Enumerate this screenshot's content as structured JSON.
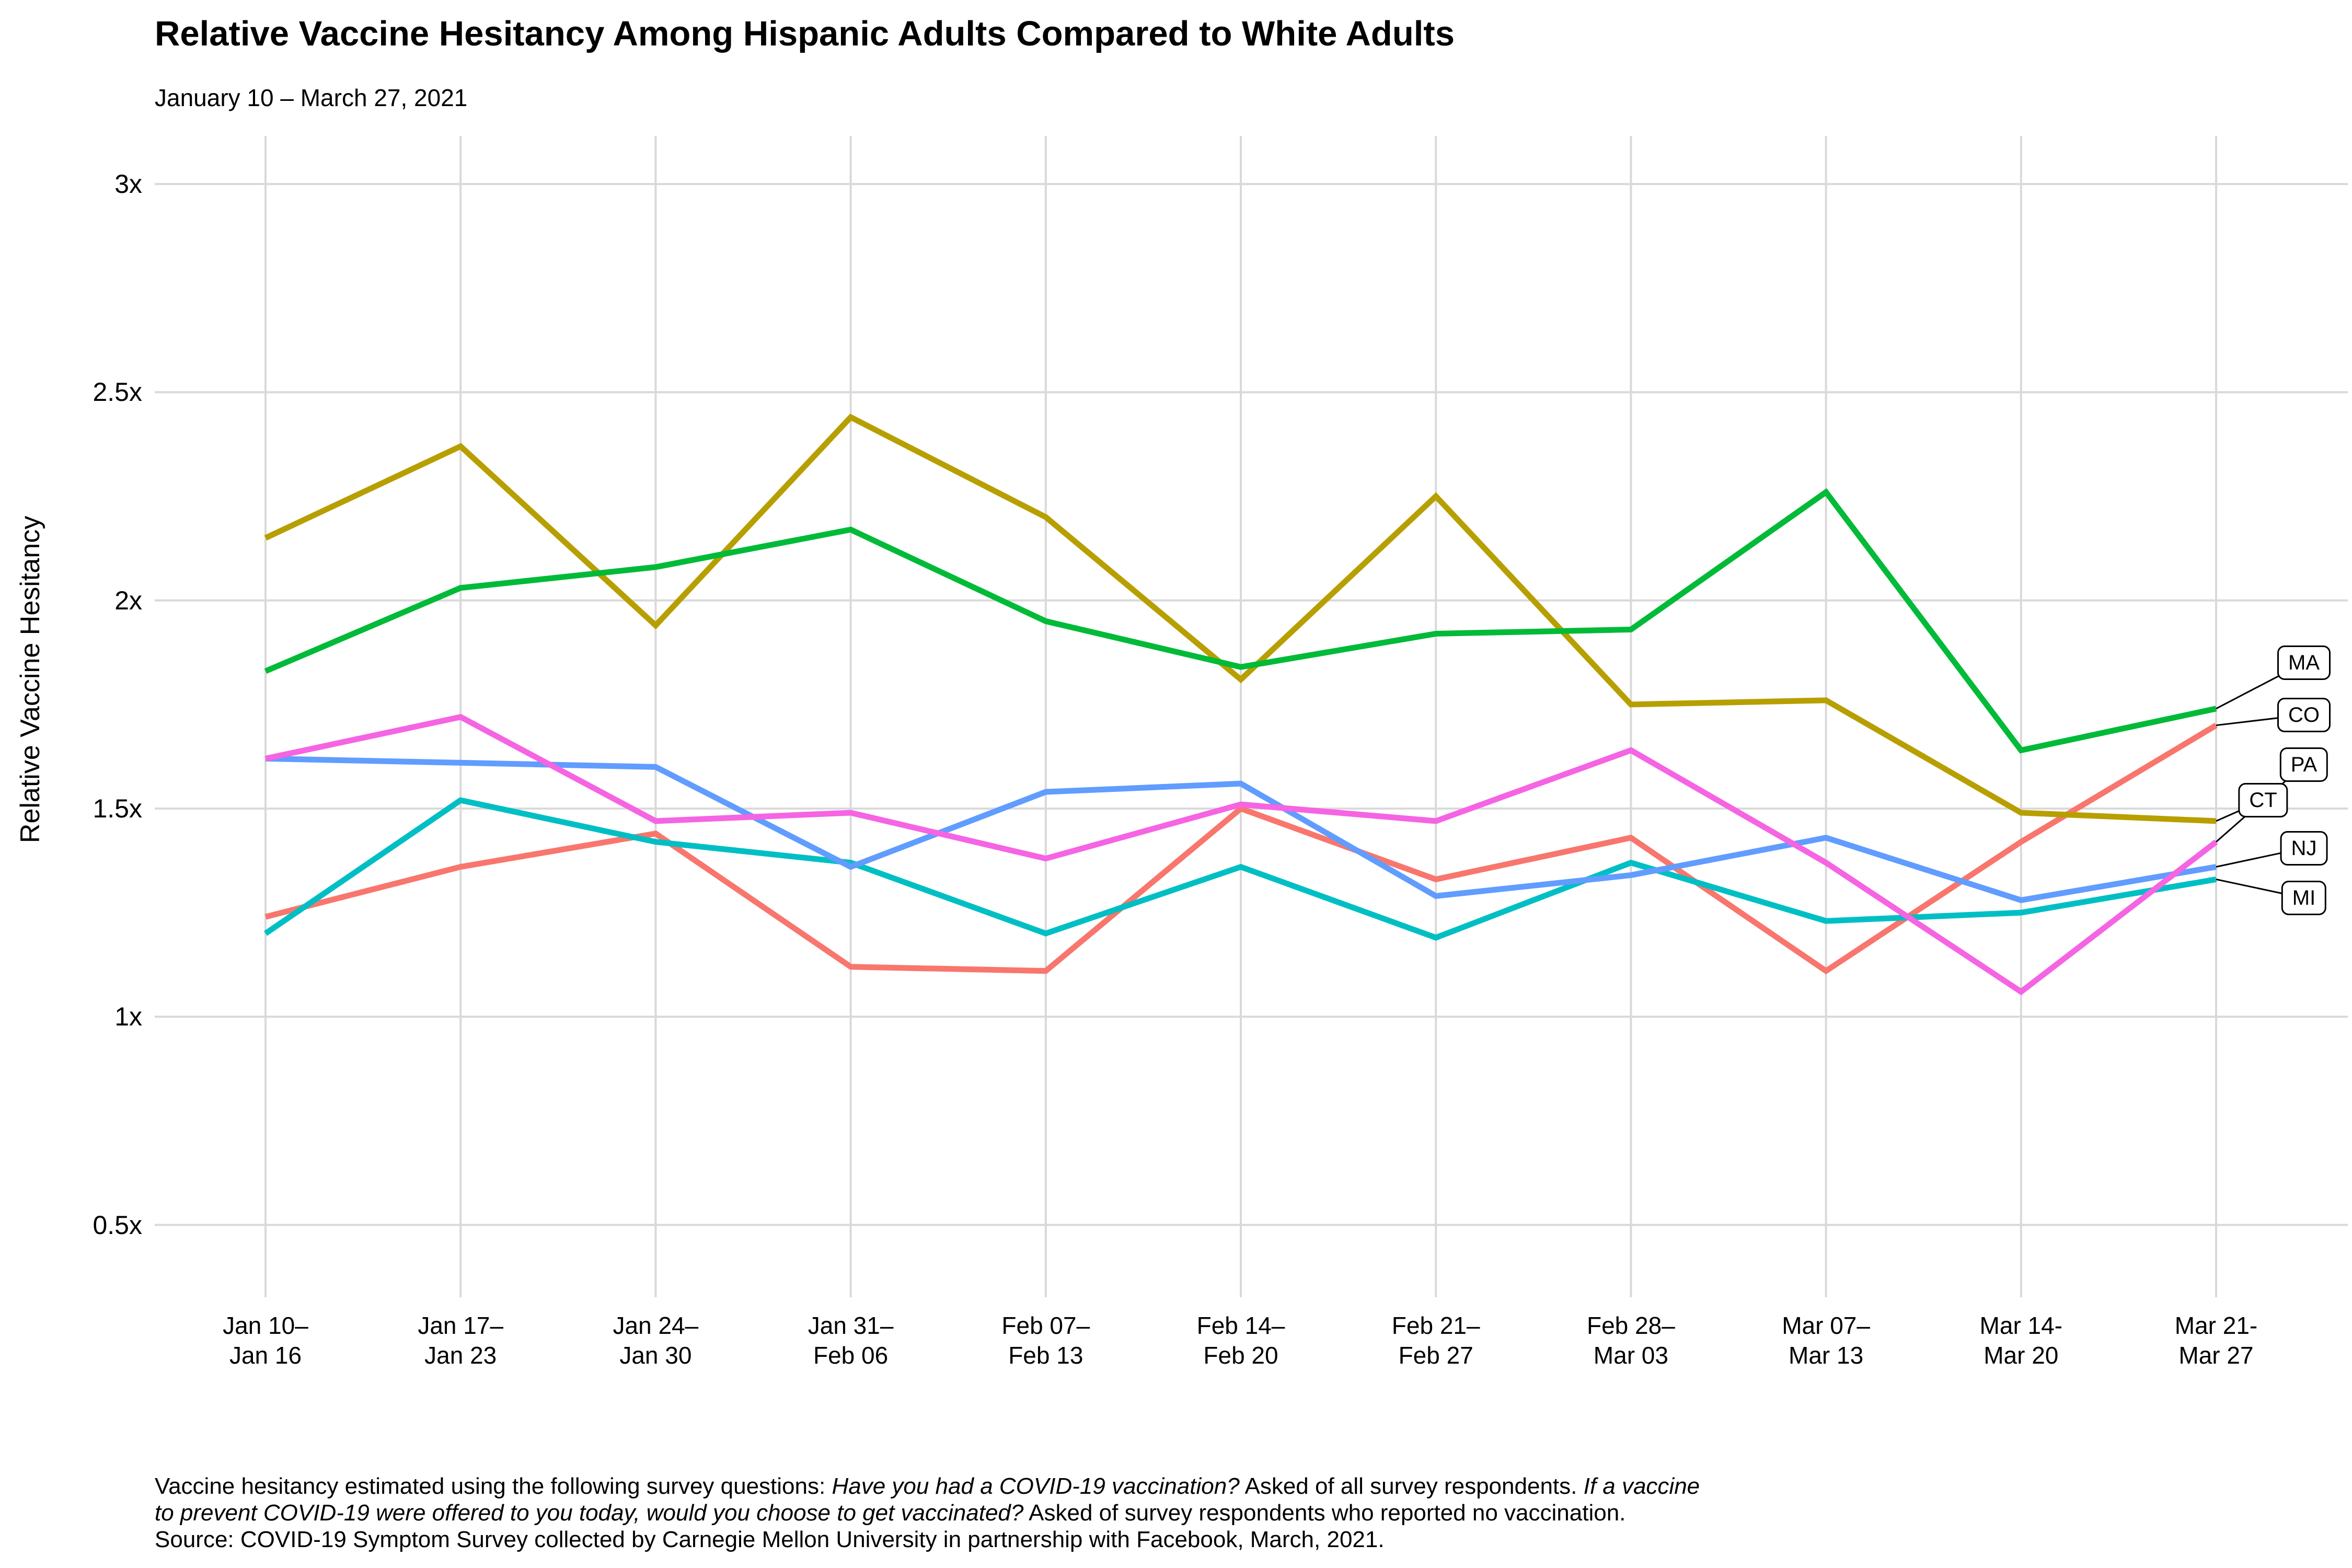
{
  "title": "Relative Vaccine Hesitancy Among Hispanic Adults Compared to White Adults",
  "subtitle": "January 10 – March 27, 2021",
  "footer": {
    "lines": [
      [
        {
          "text": "Vaccine hesitancy estimated using the following survey questions: ",
          "italic": false
        },
        {
          "text": "Have you had a COVID-19 vaccination?",
          "italic": true
        },
        {
          "text": " Asked of all survey respondents. ",
          "italic": false
        },
        {
          "text": "If a vaccine",
          "italic": true
        }
      ],
      [
        {
          "text": "to prevent COVID-19 were offered to you today, would you choose to get vaccinated?",
          "italic": true
        },
        {
          "text": " Asked of survey respondents who reported no vaccination.",
          "italic": false
        }
      ],
      [
        {
          "text": "Source: COVID-19 Symptom Survey collected by Carnegie Mellon University in partnership with Facebook, March, 2021.",
          "italic": false
        }
      ]
    ]
  },
  "chart_data": {
    "type": "line",
    "title": "Relative Vaccine Hesitancy Among Hispanic Adults Compared to White Adults",
    "subtitle": "January 10 – March 27, 2021",
    "xlabel": "",
    "ylabel": "Relative Vaccine Hesitancy",
    "grid": true,
    "legend_position": "right-end-labels",
    "ylim": [
      0.5,
      3
    ],
    "y_ticks": [
      {
        "value": 3,
        "label": "3x"
      },
      {
        "value": 2.5,
        "label": "2.5x"
      },
      {
        "value": 2,
        "label": "2x"
      },
      {
        "value": 1.5,
        "label": "1.5x"
      },
      {
        "value": 1,
        "label": "1x"
      },
      {
        "value": 0.5,
        "label": "0.5x"
      }
    ],
    "categories": [
      {
        "line1": "Jan 10–",
        "line2": "Jan 16"
      },
      {
        "line1": "Jan 17–",
        "line2": "Jan 23"
      },
      {
        "line1": "Jan 24–",
        "line2": "Jan 30"
      },
      {
        "line1": "Jan 31–",
        "line2": "Feb 06"
      },
      {
        "line1": "Feb 07–",
        "line2": "Feb 13"
      },
      {
        "line1": "Feb 14–",
        "line2": "Feb 20"
      },
      {
        "line1": "Feb 21–",
        "line2": "Feb 27"
      },
      {
        "line1": "Feb 28–",
        "line2": "Mar 03"
      },
      {
        "line1": "Mar 07–",
        "line2": "Mar 13"
      },
      {
        "line1": "Mar 14-",
        "line2": "Mar 20"
      },
      {
        "line1": "Mar 21-",
        "line2": "Mar 27"
      }
    ],
    "series": [
      {
        "name": "CO",
        "color": "#F8766D",
        "values": [
          1.24,
          1.36,
          1.44,
          1.12,
          1.11,
          1.5,
          1.33,
          1.43,
          1.11,
          1.42,
          1.7
        ]
      },
      {
        "name": "CT",
        "color": "#B79F00",
        "values": [
          2.15,
          2.37,
          1.94,
          2.44,
          2.2,
          1.81,
          2.25,
          1.75,
          1.76,
          1.49,
          1.47
        ]
      },
      {
        "name": "MA",
        "color": "#00BA38",
        "values": [
          1.83,
          2.03,
          2.08,
          2.17,
          1.95,
          1.84,
          1.92,
          1.93,
          2.26,
          1.64,
          1.74
        ]
      },
      {
        "name": "MI",
        "color": "#00BFC4",
        "values": [
          1.2,
          1.52,
          1.42,
          1.37,
          1.2,
          1.36,
          1.19,
          1.37,
          1.23,
          1.25,
          1.33
        ]
      },
      {
        "name": "NJ",
        "color": "#619CFF",
        "values": [
          1.62,
          1.61,
          1.6,
          1.36,
          1.54,
          1.56,
          1.29,
          1.34,
          1.43,
          1.28,
          1.36
        ]
      },
      {
        "name": "PA",
        "color": "#F564E3",
        "values": [
          1.62,
          1.72,
          1.47,
          1.49,
          1.38,
          1.51,
          1.47,
          1.64,
          1.37,
          1.06,
          1.42
        ]
      }
    ],
    "end_labels": [
      {
        "name": "MA",
        "label_value": 1.85,
        "column": "far"
      },
      {
        "name": "CO",
        "label_value": 1.725,
        "column": "far"
      },
      {
        "name": "PA",
        "label_value": 1.605,
        "column": "far"
      },
      {
        "name": "CT",
        "label_value": 1.52,
        "column": "near"
      },
      {
        "name": "NJ",
        "label_value": 1.405,
        "column": "far"
      },
      {
        "name": "MI",
        "label_value": 1.285,
        "column": "far"
      }
    ],
    "grid_color": "#D9D9D9",
    "line_width": 11
  }
}
